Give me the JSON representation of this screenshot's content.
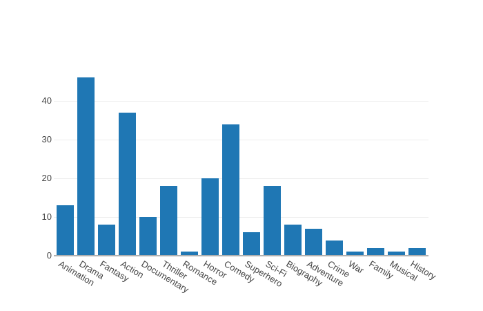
{
  "window": {
    "background": "#ffffff"
  },
  "colors": {
    "bar": "#1f77b4",
    "grid": "#ededed",
    "axis_line": "#b0b0b0",
    "tick_text": "#444444",
    "background": "#ffffff"
  },
  "chart_data": {
    "type": "bar",
    "title": "",
    "xlabel": "",
    "ylabel": "",
    "categories": [
      "Animation",
      "Drama",
      "Fantasy",
      "Action",
      "Documentary",
      "Thriller",
      "Romance",
      "Horror",
      "Comedy",
      "Superhero",
      "Sci-Fi",
      "Biography",
      "Adventure",
      "Crime",
      "War",
      "Family",
      "Musical",
      "History"
    ],
    "values": [
      13,
      46,
      8,
      37,
      10,
      18,
      1,
      20,
      34,
      6,
      18,
      8,
      7,
      4,
      1,
      2,
      1,
      2
    ],
    "yticks": [
      0,
      10,
      20,
      30,
      40
    ],
    "ylim": [
      0,
      48.8
    ],
    "xtick_angle_deg": 31,
    "grid": "horizontal",
    "gridlines_on": true,
    "legend_position": "none",
    "bar_orientation": "vertical"
  }
}
